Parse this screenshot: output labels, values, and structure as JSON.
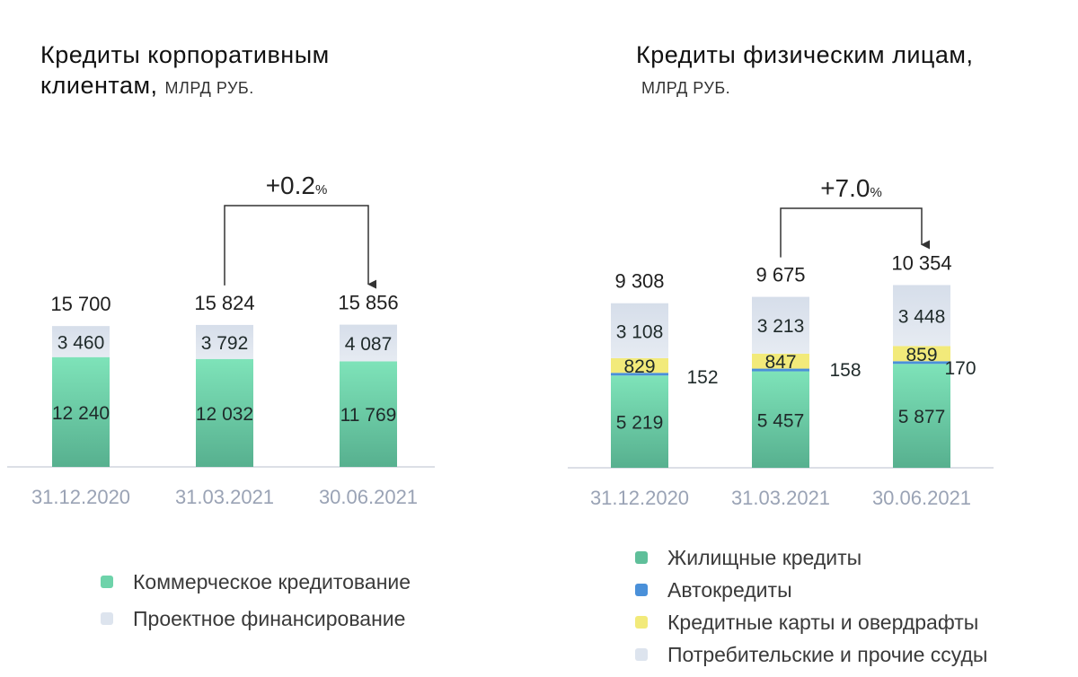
{
  "colors": {
    "green": "#6ed3aa",
    "green_dark": "#5fb596",
    "blue": "#4a90d9",
    "yellow": "#f2ea7a",
    "light": "#dde4ee",
    "axis": "#c8ccd6",
    "tick": "#9aa3b5",
    "arrow": "#333333"
  },
  "left_panel": {
    "title_line1": "Кредиты  корпоративным",
    "title_line2": "клиентам,",
    "unit": "МЛРД РУБ.",
    "legend": [
      {
        "label": "Коммерческое кредитование",
        "color": "#6ed3aa"
      },
      {
        "label": "Проектное финансирование",
        "color": "#dde4ee"
      }
    ]
  },
  "right_panel": {
    "title_line1": "Кредиты  физическим  лицам,",
    "unit": "МЛРД РУБ.",
    "legend": [
      {
        "label": "Жилищные кредиты",
        "color": "#5fbf9a"
      },
      {
        "label": "Автокредиты",
        "color": "#4a90d9"
      },
      {
        "label": "Кредитные карты и овердрафты",
        "color": "#f2ea7a"
      },
      {
        "label": "Потребительские и прочие ссуды",
        "color": "#dde4ee"
      }
    ]
  },
  "chart_data": [
    {
      "type": "bar",
      "stacked": true,
      "title": "Кредиты корпоративным клиентам, МЛРД РУБ.",
      "categories": [
        "31.12.2020",
        "31.03.2021",
        "30.06.2021"
      ],
      "series": [
        {
          "name": "Коммерческое кредитование",
          "values": [
            12240,
            12032,
            11769
          ],
          "labels": [
            "12 240",
            "12 032",
            "11 769"
          ]
        },
        {
          "name": "Проектное финансирование",
          "values": [
            3460,
            3792,
            4087
          ],
          "labels": [
            "3 460",
            "3 792",
            "4 087"
          ]
        }
      ],
      "totals": [
        15700,
        15824,
        15856
      ],
      "total_labels": [
        "15 700",
        "15 824",
        "15 856"
      ],
      "annotation": {
        "text": "+0.2",
        "suffix": "%",
        "from": 1,
        "to": 2
      }
    },
    {
      "type": "bar",
      "stacked": true,
      "title": "Кредиты физическим лицам, МЛРД РУБ.",
      "categories": [
        "31.12.2020",
        "31.03.2021",
        "30.06.2021"
      ],
      "series": [
        {
          "name": "Жилищные кредиты",
          "values": [
            5219,
            5457,
            5877
          ],
          "labels": [
            "5 219",
            "5 457",
            "5 877"
          ]
        },
        {
          "name": "Автокредиты",
          "values": [
            152,
            158,
            170
          ],
          "labels": [
            "152",
            "158",
            "170"
          ]
        },
        {
          "name": "Кредитные карты и овердрафты",
          "values": [
            829,
            847,
            859
          ],
          "labels": [
            "829",
            "847",
            "859"
          ]
        },
        {
          "name": "Потребительские и прочие ссуды",
          "values": [
            3108,
            3213,
            3448
          ],
          "labels": [
            "3 108",
            "3 213",
            "3 448"
          ]
        }
      ],
      "totals": [
        9308,
        9675,
        10354
      ],
      "total_labels": [
        "9 308",
        "9 675",
        "10 354"
      ],
      "annotation": {
        "text": "+7.0",
        "suffix": "%",
        "from": 1,
        "to": 2
      }
    }
  ]
}
